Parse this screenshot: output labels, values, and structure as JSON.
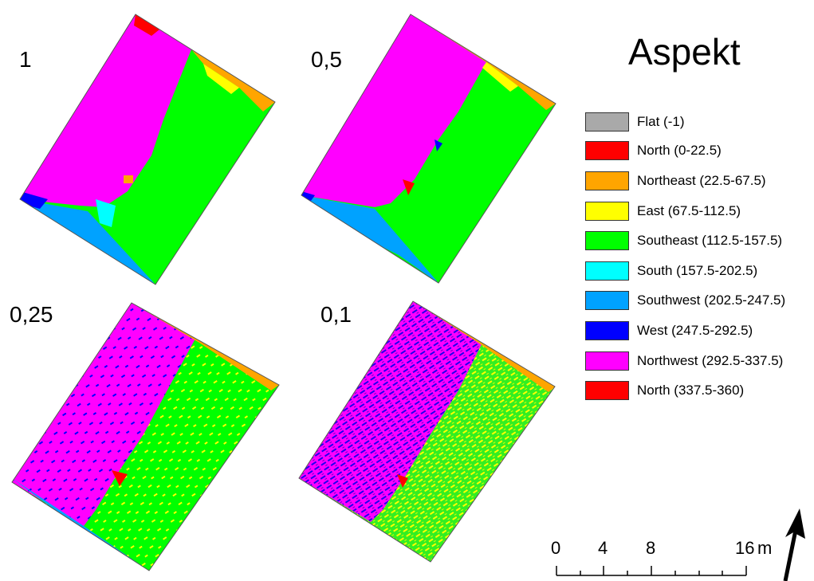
{
  "legend": {
    "title": "Aspekt",
    "classes": [
      {
        "label": "Flat (-1)",
        "color": "#a9a9a9"
      },
      {
        "label": "North (0-22.5)",
        "color": "#ff0000"
      },
      {
        "label": "Northeast (22.5-67.5)",
        "color": "#ffa500"
      },
      {
        "label": "East (67.5-112.5)",
        "color": "#ffff00"
      },
      {
        "label": "Southeast (112.5-157.5)",
        "color": "#00ff00"
      },
      {
        "label": "South (157.5-202.5)",
        "color": "#00ffff"
      },
      {
        "label": "Southwest (202.5-247.5)",
        "color": "#00a2ff"
      },
      {
        "label": "West (247.5-292.5)",
        "color": "#0000ff"
      },
      {
        "label": "Northwest (292.5-337.5)",
        "color": "#ff00ff"
      },
      {
        "label": "North (337.5-360)",
        "color": "#ff0000"
      }
    ]
  },
  "panels": [
    {
      "label": "1"
    },
    {
      "label": "0,5"
    },
    {
      "label": "0,25"
    },
    {
      "label": "0,1"
    }
  ],
  "scale_bar": {
    "ticks": [
      "0",
      "4",
      "8",
      "16"
    ],
    "unit": "m"
  },
  "north_arrow": {
    "icon": "north-arrow-icon"
  }
}
